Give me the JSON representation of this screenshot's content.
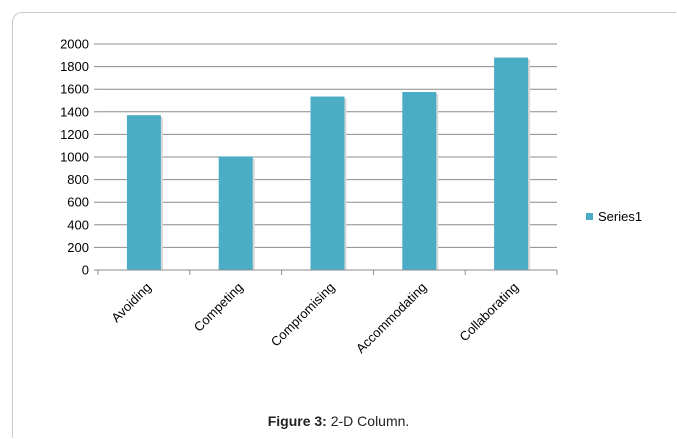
{
  "chart_data": {
    "type": "bar",
    "categories": [
      "Avoiding",
      "Competing",
      "Compromising",
      "Accommodating",
      "Collaborating"
    ],
    "series": [
      {
        "name": "Series1",
        "values": [
          1370,
          1005,
          1535,
          1575,
          1880
        ],
        "color": "#4bacc6"
      }
    ],
    "ylim": [
      0,
      2000
    ],
    "yticks": [
      0,
      200,
      400,
      600,
      800,
      1000,
      1200,
      1400,
      1600,
      1800,
      2000
    ],
    "grid": true,
    "legend": "right"
  },
  "caption": {
    "label": "Figure 3:",
    "text": " 2-D Column."
  }
}
